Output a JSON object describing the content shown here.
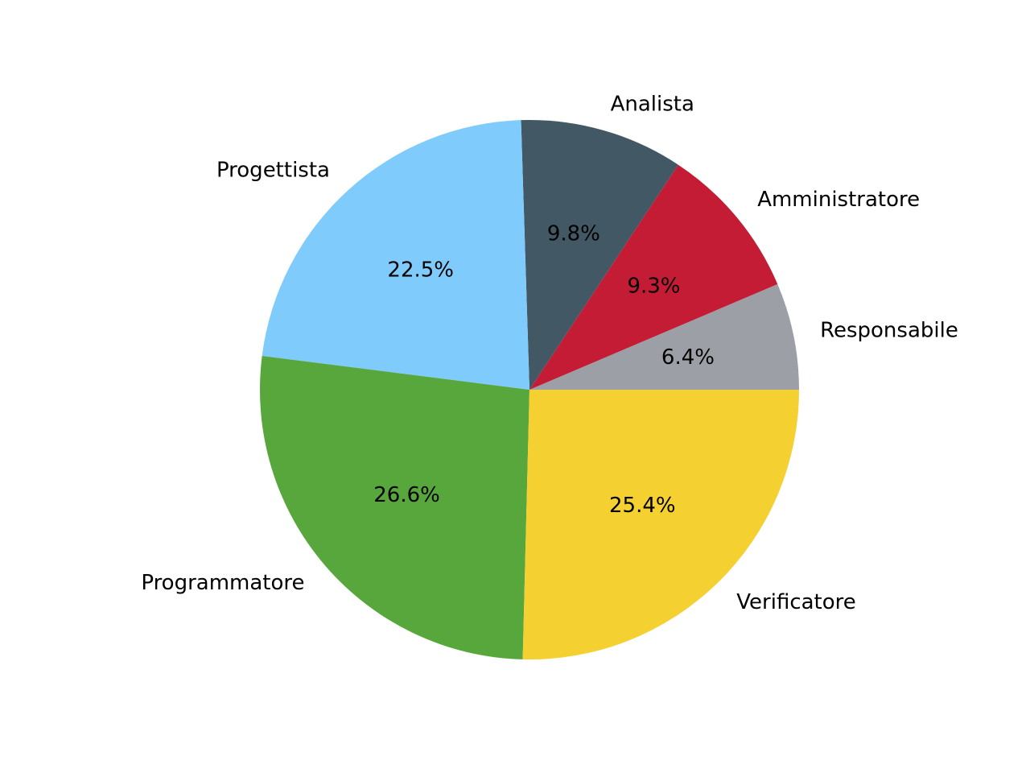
{
  "chart_data": {
    "type": "pie",
    "title": "",
    "slices": [
      {
        "label": "Responsabile",
        "value": 6.4,
        "value_label": "6.4%",
        "color": "#9ca0a6"
      },
      {
        "label": "Amministratore",
        "value": 9.3,
        "value_label": "9.3%",
        "color": "#c41c34"
      },
      {
        "label": "Analista",
        "value": 9.8,
        "value_label": "9.8%",
        "color": "#425864"
      },
      {
        "label": "Progettista",
        "value": 22.5,
        "value_label": "22.5%",
        "color": "#7fcbfc"
      },
      {
        "label": "Programmatore",
        "value": 26.6,
        "value_label": "26.6%",
        "color": "#58a73c"
      },
      {
        "label": "Verificatore",
        "value": 25.4,
        "value_label": "25.4%",
        "color": "#f4d030"
      }
    ],
    "start_angle": 0,
    "direction": "counterclockwise"
  }
}
